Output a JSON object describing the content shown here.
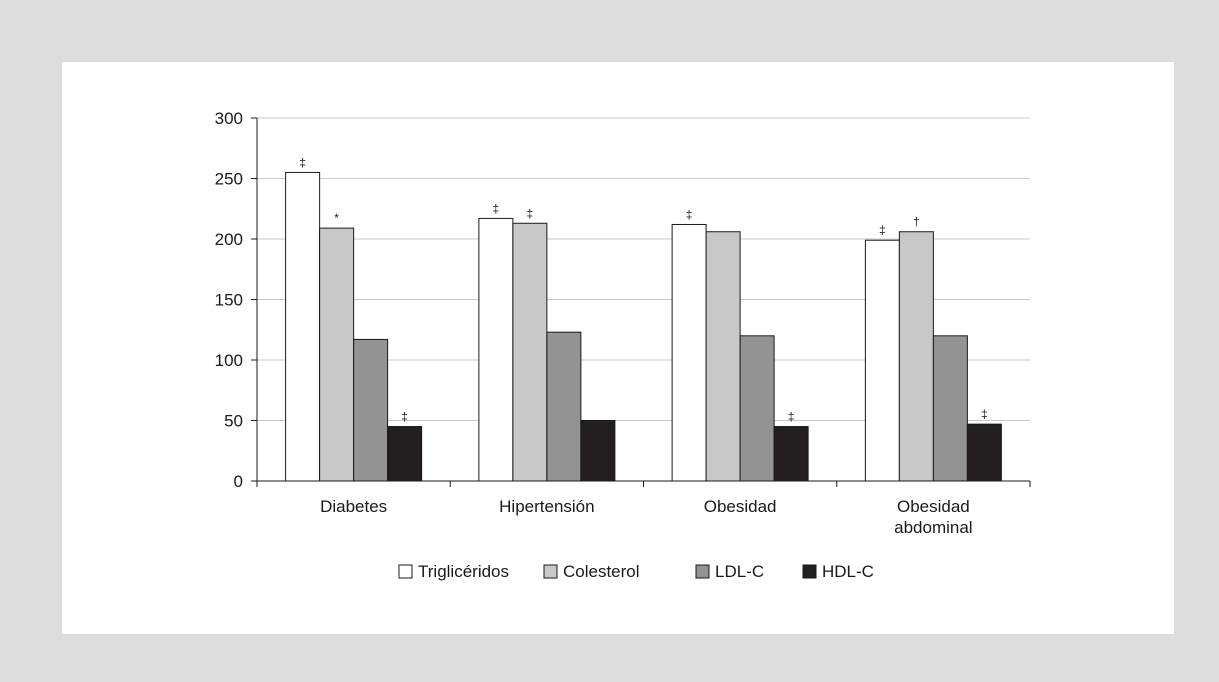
{
  "chart_data": {
    "type": "bar",
    "categories": [
      [
        "Diabetes"
      ],
      [
        "Hipertensión"
      ],
      [
        "Obesidad"
      ],
      [
        "Obesidad",
        "abdominal"
      ]
    ],
    "series": [
      {
        "name": "Triglicéridos",
        "color": "#ffffff",
        "values": [
          255,
          217,
          212,
          199
        ],
        "markers": [
          "‡",
          "‡",
          "‡",
          "‡"
        ]
      },
      {
        "name": "Colesterol",
        "color": "#c8c8c8",
        "values": [
          209,
          213,
          206,
          206
        ],
        "markers": [
          "*",
          "‡",
          "",
          "†"
        ]
      },
      {
        "name": "LDL-C",
        "color": "#939393",
        "values": [
          117,
          123,
          120,
          120
        ],
        "markers": [
          "",
          "",
          "",
          ""
        ]
      },
      {
        "name": "HDL-C",
        "color": "#231f20",
        "values": [
          45,
          50,
          45,
          47
        ],
        "markers": [
          "‡",
          "",
          "‡",
          "‡"
        ]
      }
    ],
    "yticks": [
      "0",
      "50",
      "100",
      "150",
      "200",
      "250",
      "300"
    ],
    "ylim": [
      0,
      300
    ],
    "grid": true,
    "legend_position": "bottom"
  }
}
